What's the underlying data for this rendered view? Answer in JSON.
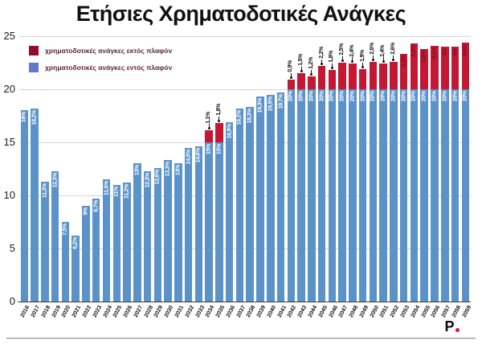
{
  "title": "Ετήσιες Χρηματοδοτικές Ανάγκες",
  "legend": {
    "items": [
      {
        "label": "χρηματοδοτικές ανάγκες εκτός πλαφόν",
        "color": "#8f0c2d"
      },
      {
        "label": "χρηματοδοτικές ανάγκες εντός πλαφόν",
        "color": "#6577cb"
      }
    ]
  },
  "logo": {
    "text": "P",
    "dot_color": "#e8112d"
  },
  "colors": {
    "bar_blue": "#5b93c9",
    "bar_red": "#c41733",
    "label_on_blue": "#ffffff",
    "label_on_red": "#7c0e26",
    "callout_text": "#111111",
    "grid": "#d4d4d4"
  },
  "chart_data": {
    "type": "bar",
    "stacked": true,
    "title": "Ετήσιες Χρηματοδοτικές Ανάγκες",
    "xlabel": "",
    "ylabel": "",
    "ylim": [
      0,
      25
    ],
    "yticks": [
      "0",
      "5",
      "10",
      "15",
      "20",
      "25"
    ],
    "grid": true,
    "legend_position": "top-left",
    "categories": [
      "2016",
      "2017",
      "2018",
      "2019",
      "2020",
      "2021",
      "2022",
      "2023",
      "2024",
      "2025",
      "2026",
      "2027",
      "2028",
      "2029",
      "2030",
      "2031",
      "2032",
      "2033",
      "2034",
      "2035",
      "2036",
      "2037",
      "2038",
      "2039",
      "2040",
      "2041",
      "2042",
      "2043",
      "2044",
      "2045",
      "2046",
      "2047",
      "2048",
      "2049",
      "2050",
      "2051",
      "2052",
      "2053",
      "2054",
      "2055",
      "2056",
      "2057",
      "2058",
      "2059"
    ],
    "series": [
      {
        "name": "χρηματοδοτικές ανάγκες εντός πλαφόν",
        "color": "#5b93c9",
        "values": [
          18,
          18.2,
          11.3,
          12.3,
          7.5,
          6.2,
          9,
          9.7,
          11.5,
          11,
          11.2,
          13,
          12.3,
          12.6,
          13.3,
          13,
          14.5,
          14.6,
          15,
          15,
          16.9,
          18.2,
          18.3,
          19.3,
          19.5,
          19.7,
          20,
          20,
          20,
          20,
          20,
          20,
          20,
          20,
          20,
          20,
          20,
          20,
          20,
          20,
          20,
          20,
          20,
          20
        ],
        "labels": [
          "18%",
          "18,2%",
          "11,3%",
          "12,3%",
          "7,5%",
          "6,2%",
          "9%",
          "9,7%",
          "11,5%",
          "11%",
          "11,2%",
          "13%",
          "12,3%",
          "12,6%",
          "13,3%",
          "13%",
          "14,5%",
          "14,6%",
          "15%",
          "15%",
          "16,9%",
          "18,2%",
          "18,3%",
          "19,3%",
          "19,5%",
          "19,7%",
          "20%",
          "20%",
          "20%",
          "20%",
          "20%",
          "20%",
          "20%",
          "20%",
          "20%",
          "20%",
          "20%",
          "20%",
          "20%",
          "20%",
          "20%",
          "20%",
          "20%",
          "20%"
        ]
      },
      {
        "name": "χρηματοδοτικές ανάγκες εκτός πλαφόν",
        "color": "#c41733",
        "values": [
          0,
          0,
          0,
          0,
          0,
          0,
          0,
          0,
          0,
          0,
          0,
          0,
          0,
          0,
          0,
          0,
          0,
          0,
          1.1,
          1.8,
          0,
          0,
          0,
          0,
          0,
          0,
          0.9,
          1.5,
          1.2,
          2.2,
          1.8,
          2.5,
          2.4,
          1.9,
          2.6,
          2.4,
          2.6,
          3.3,
          4.3,
          3.8,
          4.1,
          4,
          4,
          4.4
        ],
        "labels": [
          "",
          "",
          "",
          "",
          "",
          "",
          "",
          "",
          "",
          "",
          "",
          "",
          "",
          "",
          "",
          "",
          "",
          "",
          "1,1%",
          "1,8%",
          "",
          "",
          "",
          "",
          "",
          "",
          "0,9%",
          "1,5%",
          "1,2%",
          "2,2%",
          "1,8%",
          "2,5%",
          "2,4%",
          "1,9%",
          "2,6%",
          "2,4%",
          "2,6%",
          "3,3%",
          "4,3%",
          "3,8%",
          "4,1%",
          "4%",
          "4%",
          "4,4%"
        ]
      }
    ]
  }
}
